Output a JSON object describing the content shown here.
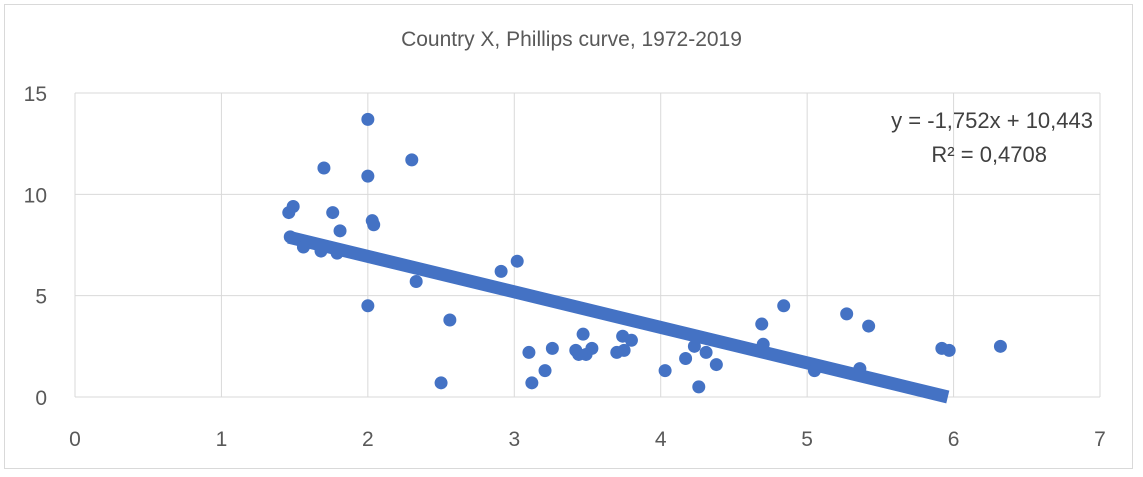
{
  "chart_data": {
    "type": "scatter",
    "title": "Country X, Phillips curve, 1972-2019",
    "xlim": [
      0,
      7
    ],
    "ylim": [
      0,
      15
    ],
    "x_ticks": [
      "0",
      "1",
      "2",
      "3",
      "4",
      "5",
      "6",
      "7"
    ],
    "y_ticks": [
      "0",
      "5",
      "10",
      "15"
    ],
    "grid": true,
    "marker_color": "#4472c4",
    "trendline": {
      "slope": -1.752,
      "intercept": 10.443,
      "equation": "y = -1,752x + 10,443",
      "r_squared": "R² = 0,4708"
    },
    "points": [
      {
        "x": 1.46,
        "y": 9.1
      },
      {
        "x": 1.49,
        "y": 9.4
      },
      {
        "x": 1.47,
        "y": 7.9
      },
      {
        "x": 1.56,
        "y": 7.4
      },
      {
        "x": 1.68,
        "y": 7.2
      },
      {
        "x": 1.7,
        "y": 11.3
      },
      {
        "x": 1.76,
        "y": 9.1
      },
      {
        "x": 1.79,
        "y": 7.1
      },
      {
        "x": 1.81,
        "y": 8.2
      },
      {
        "x": 2.0,
        "y": 13.7
      },
      {
        "x": 2.0,
        "y": 10.9
      },
      {
        "x": 2.03,
        "y": 8.7
      },
      {
        "x": 2.04,
        "y": 8.5
      },
      {
        "x": 2.0,
        "y": 4.5
      },
      {
        "x": 2.3,
        "y": 11.7
      },
      {
        "x": 2.33,
        "y": 5.7
      },
      {
        "x": 2.5,
        "y": 0.7
      },
      {
        "x": 2.56,
        "y": 3.8
      },
      {
        "x": 2.91,
        "y": 6.2
      },
      {
        "x": 3.02,
        "y": 6.7
      },
      {
        "x": 3.1,
        "y": 2.2
      },
      {
        "x": 3.12,
        "y": 0.7
      },
      {
        "x": 3.21,
        "y": 1.3
      },
      {
        "x": 3.26,
        "y": 2.4
      },
      {
        "x": 3.42,
        "y": 2.3
      },
      {
        "x": 3.44,
        "y": 2.1
      },
      {
        "x": 3.47,
        "y": 3.1
      },
      {
        "x": 3.49,
        "y": 2.1
      },
      {
        "x": 3.53,
        "y": 2.4
      },
      {
        "x": 3.7,
        "y": 2.2
      },
      {
        "x": 3.74,
        "y": 3.0
      },
      {
        "x": 3.75,
        "y": 2.3
      },
      {
        "x": 3.8,
        "y": 2.8
      },
      {
        "x": 4.03,
        "y": 1.3
      },
      {
        "x": 4.17,
        "y": 1.9
      },
      {
        "x": 4.23,
        "y": 2.5
      },
      {
        "x": 4.26,
        "y": 0.5
      },
      {
        "x": 4.31,
        "y": 2.2
      },
      {
        "x": 4.38,
        "y": 1.6
      },
      {
        "x": 4.69,
        "y": 3.6
      },
      {
        "x": 4.7,
        "y": 2.6
      },
      {
        "x": 4.84,
        "y": 4.5
      },
      {
        "x": 5.05,
        "y": 1.3
      },
      {
        "x": 5.27,
        "y": 4.1
      },
      {
        "x": 5.36,
        "y": 1.4
      },
      {
        "x": 5.42,
        "y": 3.5
      },
      {
        "x": 5.92,
        "y": 2.4
      },
      {
        "x": 5.97,
        "y": 2.3
      },
      {
        "x": 6.32,
        "y": 2.5
      }
    ]
  }
}
